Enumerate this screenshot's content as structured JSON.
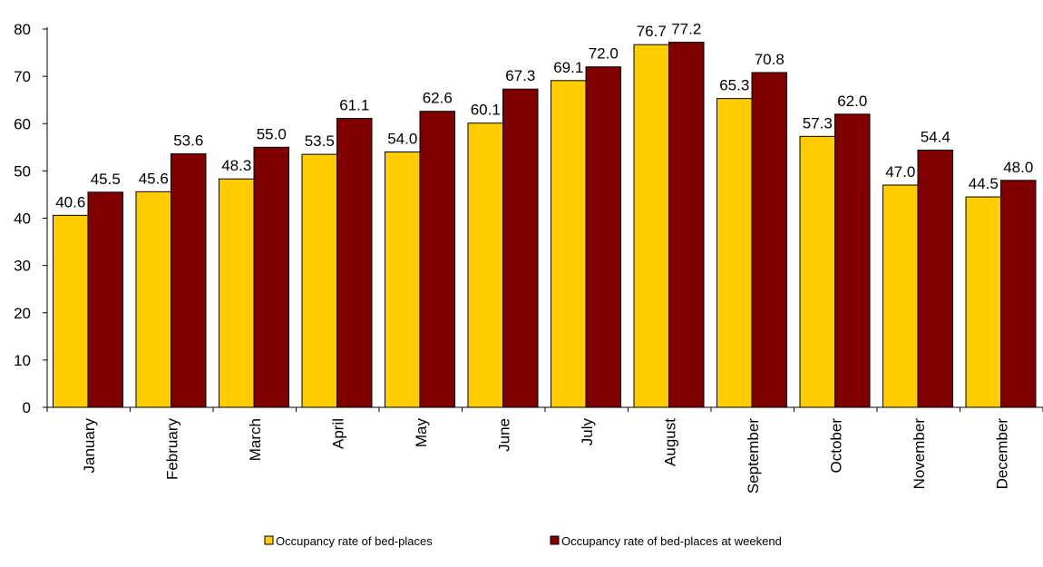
{
  "chart_data": {
    "type": "bar",
    "title": "",
    "xlabel": "",
    "ylabel": "",
    "ylim": [
      0,
      80
    ],
    "yticks": [
      0,
      10,
      20,
      30,
      40,
      50,
      60,
      70,
      80
    ],
    "grid": false,
    "legend_position": "bottom",
    "categories": [
      "January",
      "February",
      "March",
      "April",
      "May",
      "June",
      "July",
      "August",
      "September",
      "October",
      "November",
      "December"
    ],
    "series": [
      {
        "name": "Occupancy rate of bed-places",
        "color": "#FFCC00",
        "values": [
          40.6,
          45.6,
          48.3,
          53.5,
          54.0,
          60.1,
          69.1,
          76.7,
          65.3,
          57.3,
          47.0,
          44.5
        ],
        "labels": [
          "40.6",
          "45.6",
          "48.3",
          "53.5",
          "54.0",
          "60.1",
          "69.1",
          "76.7",
          "65.3",
          "57.3",
          "47.0",
          "44.5"
        ]
      },
      {
        "name": "Occupancy rate of bed-places at weekend",
        "color": "#800000",
        "values": [
          45.5,
          53.6,
          55.0,
          61.1,
          62.6,
          67.3,
          72.0,
          77.2,
          70.8,
          62.0,
          54.4,
          48.0
        ],
        "labels": [
          "45.5",
          "53.6",
          "55.0",
          "61.1",
          "62.6",
          "67.3",
          "72.0",
          "77.2",
          "70.8",
          "62.0",
          "54.4",
          "48.0"
        ]
      }
    ]
  }
}
